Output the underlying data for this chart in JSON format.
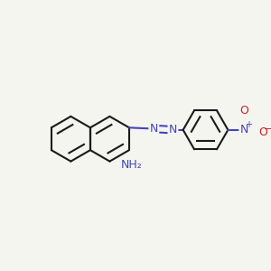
{
  "bg_color": "#f5f5f0",
  "bond_color": "#1a1a1a",
  "n_color": "#4444bb",
  "o_color": "#cc2020",
  "bond_width": 1.5,
  "dbo": 0.12,
  "font_size": 9.0,
  "fig_width": 3.0,
  "fig_height": 3.0,
  "dpi": 100,
  "xlim": [
    -4.8,
    5.8
  ],
  "ylim": [
    -3.2,
    3.5
  ]
}
